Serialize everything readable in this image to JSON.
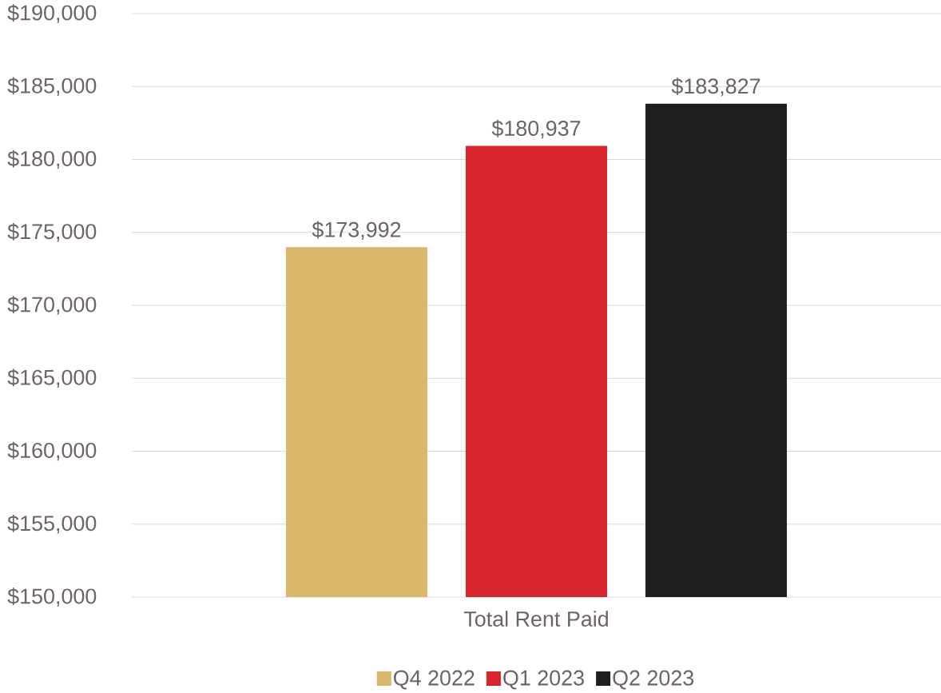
{
  "chart_data": {
    "type": "bar",
    "categories": [
      "Total Rent Paid"
    ],
    "series": [
      {
        "name": "Q4 2022",
        "color": "#d9b86b",
        "values": [
          173992
        ],
        "value_labels": [
          "$173,992"
        ]
      },
      {
        "name": "Q1 2023",
        "color": "#d9262e",
        "values": [
          180937
        ],
        "value_labels": [
          "$180,937"
        ]
      },
      {
        "name": "Q2 2023",
        "color": "#201d1e",
        "values": [
          183827
        ],
        "value_labels": [
          "$183,827"
        ]
      }
    ],
    "ylim": [
      150000,
      190000
    ],
    "yticks": [
      {
        "value": 150000,
        "label": "$150,000"
      },
      {
        "value": 155000,
        "label": "$155,000"
      },
      {
        "value": 160000,
        "label": "$160,000"
      },
      {
        "value": 165000,
        "label": "$165,000"
      },
      {
        "value": 170000,
        "label": "$170,000"
      },
      {
        "value": 175000,
        "label": "$175,000"
      },
      {
        "value": 180000,
        "label": "$180,000"
      },
      {
        "value": 185000,
        "label": "$185,000"
      },
      {
        "value": 190000,
        "label": "$190,000"
      }
    ],
    "grid": "y",
    "legend": "bottom"
  }
}
